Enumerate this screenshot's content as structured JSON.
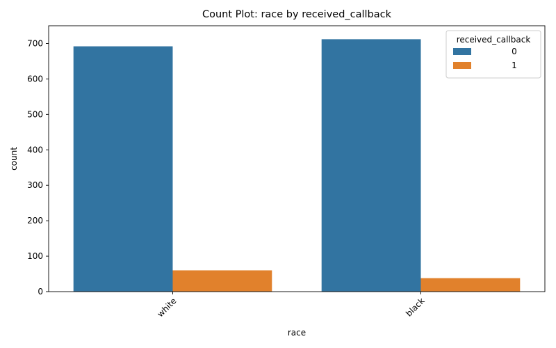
{
  "chart_data": {
    "type": "bar",
    "title": "Count Plot: race by received_callback",
    "xlabel": "race",
    "ylabel": "count",
    "categories": [
      "white",
      "black"
    ],
    "ylim": [
      0,
      750
    ],
    "yticks": [
      0,
      100,
      200,
      300,
      400,
      500,
      600,
      700
    ],
    "grid": false,
    "legend": {
      "title": "received_callback",
      "placement": "top-right"
    },
    "series": [
      {
        "name": "0",
        "values": [
          692,
          712
        ],
        "color": "#3274a1"
      },
      {
        "name": "1",
        "values": [
          60,
          38
        ],
        "color": "#e1812c"
      }
    ]
  }
}
